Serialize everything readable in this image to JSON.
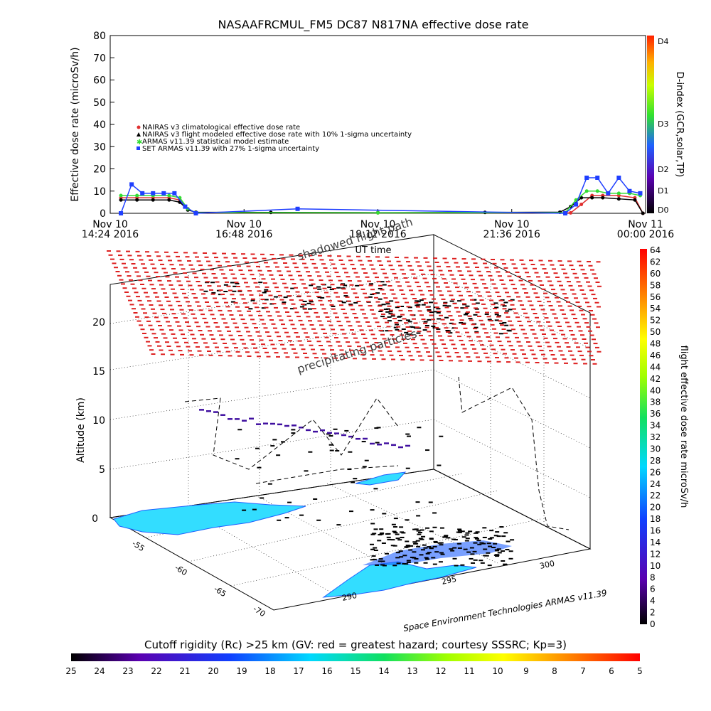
{
  "chart_data": [
    {
      "type": "line",
      "title": "NASAAFRCMUL_FM5 DC87 N817NA effective dose rate",
      "ylabel": "Effective dose rate (microSv/h)",
      "xlabel": "UT time",
      "ylim": [
        0,
        80
      ],
      "y_ticks": [
        "0",
        "10",
        "20",
        "30",
        "40",
        "50",
        "60",
        "70",
        "80"
      ],
      "x_ticks": [
        {
          "line1": "Nov 10",
          "line2": "14:24 2016"
        },
        {
          "line1": "Nov 10",
          "line2": "16:48 2016"
        },
        {
          "line1": "Nov 10",
          "line2": "19:12 2016"
        },
        {
          "line1": "Nov 10",
          "line2": "21:36 2016"
        },
        {
          "line1": "Nov 11",
          "line2": "00:00 2016"
        }
      ],
      "legend": [
        {
          "label": "NAIRAS v3 climatological effective dose rate",
          "color": "#e03030",
          "marker": "o"
        },
        {
          "label": "NAIRAS v3 flight modeled effective dose rate with 10% 1-sigma uncertainty",
          "color": "#000000",
          "marker": "^"
        },
        {
          "label": "ARMAS v11.39 statistical model estimate",
          "color": "#33dd33",
          "marker": "x"
        },
        {
          "label": "SET ARMAS v11.39 with 27% 1-sigma uncertainty",
          "color": "#1f3fff",
          "marker": "s"
        }
      ],
      "series": [
        {
          "name": "NAIRAS v3 climatological effective dose rate",
          "color": "#e03030",
          "x": [
            0.02,
            0.05,
            0.08,
            0.11,
            0.13,
            0.145,
            0.16,
            0.5,
            0.86,
            0.88,
            0.9,
            0.92,
            0.95,
            0.98,
            0.995
          ],
          "values": [
            7,
            7,
            7,
            7,
            6,
            2,
            0.2,
            0.2,
            0.2,
            4,
            8,
            8,
            8,
            7,
            0
          ]
        },
        {
          "name": "NAIRAS v3 flight modeled effective dose rate with 10% 1-sigma uncertainty",
          "color": "#000000",
          "x": [
            0.02,
            0.05,
            0.08,
            0.11,
            0.13,
            0.145,
            0.16,
            0.3,
            0.5,
            0.7,
            0.84,
            0.86,
            0.88,
            0.9,
            0.92,
            0.95,
            0.98,
            0.995
          ],
          "values": [
            6,
            6,
            6,
            6,
            5,
            1.5,
            0.5,
            0.4,
            0.3,
            0.4,
            0.5,
            3,
            7,
            7,
            7,
            6.5,
            6,
            0
          ]
        },
        {
          "name": "ARMAS v11.39 statistical model estimate",
          "color": "#33dd33",
          "x": [
            0.02,
            0.05,
            0.08,
            0.11,
            0.13,
            0.145,
            0.16,
            0.5,
            0.85,
            0.87,
            0.89,
            0.91,
            0.93,
            0.95,
            0.97,
            0.99
          ],
          "values": [
            8,
            8,
            8,
            8,
            7,
            2,
            0.3,
            0.2,
            0.3,
            6,
            10,
            10,
            9,
            9,
            9,
            8
          ]
        },
        {
          "name": "SET ARMAS v11.39 with 27% 1-sigma uncertainty",
          "color": "#1f3fff",
          "x": [
            0.02,
            0.04,
            0.06,
            0.08,
            0.1,
            0.12,
            0.14,
            0.16,
            0.35,
            0.85,
            0.87,
            0.89,
            0.91,
            0.93,
            0.95,
            0.97,
            0.99
          ],
          "values": [
            0,
            13,
            9,
            9,
            9,
            9,
            3,
            0,
            2,
            0,
            4,
            16,
            16,
            9,
            16,
            10,
            9
          ]
        }
      ],
      "right_axis": {
        "label": "D-index (GCR,solar,TP)",
        "ticks": [
          "D0",
          "D1",
          "D2",
          "D3",
          "D4"
        ],
        "colors": [
          "#000000",
          "#5a00b0",
          "#2060ff",
          "#30e030",
          "#ffff00",
          "#ff8000",
          "#ff0000"
        ]
      }
    },
    {
      "type": "scatter",
      "title": "",
      "zlabel": "Altitude (km)",
      "z_ticks": [
        "0",
        "5",
        "10",
        "15",
        "20"
      ],
      "lat_ticks": [
        "-55",
        "-60",
        "-65",
        "-70"
      ],
      "lon_ticks": [
        "290",
        "295",
        "300"
      ],
      "annotations": [
        "shadowed flight path",
        "precipitating particles"
      ],
      "credit": "Space Environment Technologies ARMAS v11.39",
      "colorbar": {
        "label": "flight effective dose rate microSv/h",
        "ticks": [
          "0",
          "2",
          "4",
          "6",
          "8",
          "10",
          "12",
          "14",
          "16",
          "18",
          "20",
          "22",
          "24",
          "26",
          "28",
          "30",
          "32",
          "34",
          "36",
          "38",
          "40",
          "42",
          "44",
          "46",
          "48",
          "50",
          "52",
          "54",
          "56",
          "58",
          "60",
          "62",
          "64"
        ]
      }
    }
  ],
  "bottom_bar": {
    "title": "Cutoff rigidity (Rc) >25 km (GV: red = greatest hazard; courtesy SSSRC; Kp=3)",
    "ticks": [
      "25",
      "24",
      "23",
      "22",
      "21",
      "20",
      "19",
      "18",
      "17",
      "16",
      "15",
      "14",
      "13",
      "12",
      "11",
      "10",
      "9",
      "8",
      "7",
      "6",
      "5"
    ]
  },
  "colors": {
    "grid_cyan": "#33ddff",
    "grid_blue": "#2060ff",
    "flight_red": "#dd2020",
    "flight_purple": "#4010a0"
  }
}
